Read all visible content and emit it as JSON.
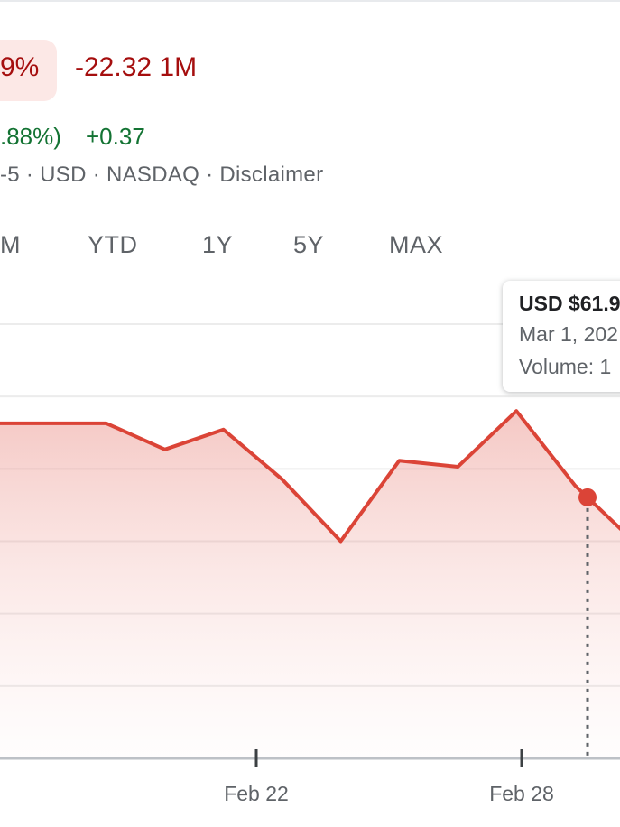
{
  "quote": {
    "pct_change_partial": "9%",
    "abs_change": "-22.32 1M",
    "after_hours_pct_partial": ".88%)",
    "after_hours_abs": "+0.37",
    "meta_line": "-5 · USD · NASDAQ · Disclaimer"
  },
  "range_tabs": [
    "M",
    "YTD",
    "1Y",
    "5Y",
    "MAX"
  ],
  "tooltip": {
    "price": "USD $61.9",
    "date": "Mar 1, 202",
    "volume": "Volume: 1"
  },
  "colors": {
    "line": "#db4437",
    "negative_text": "#a50e0e",
    "positive_text": "#137333",
    "pill_bg": "#fce8e6"
  },
  "chart_data": {
    "type": "area",
    "x_tick_labels": [
      "Feb 22",
      "Feb 28"
    ],
    "y_range": [
      0,
      7
    ],
    "gridlines": true,
    "series": [
      {
        "values": [
          5.4,
          5.4,
          5.4,
          4.98,
          5.3,
          4.5,
          3.5,
          4.8,
          4.7,
          5.6,
          4.4,
          3.5
        ]
      }
    ],
    "hover_index": 10
  }
}
